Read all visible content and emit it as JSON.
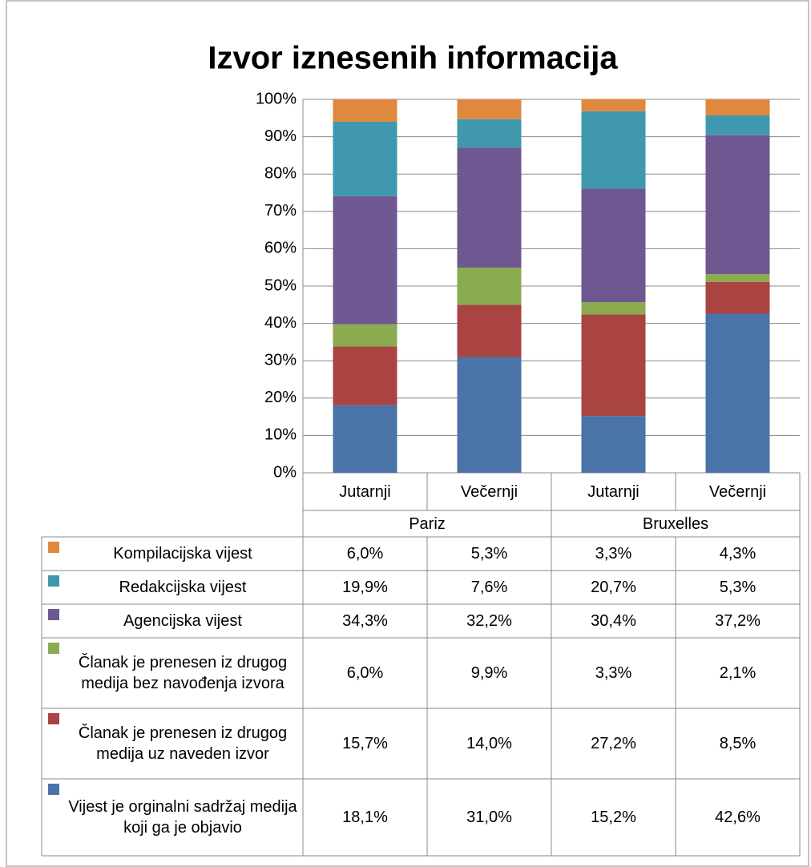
{
  "chart_data": {
    "type": "stacked_bar",
    "title": "Izvor iznesenih informacija",
    "categories": [
      "Jutarnji",
      "Večernji",
      "Jutarnji",
      "Večernji"
    ],
    "groups": [
      "Pariz",
      "Bruxelles"
    ],
    "ylim": [
      0,
      100
    ],
    "yticks": [
      {
        "value": 0,
        "label": "0%"
      },
      {
        "value": 10,
        "label": "10%"
      },
      {
        "value": 20,
        "label": "20%"
      },
      {
        "value": 30,
        "label": "30%"
      },
      {
        "value": 40,
        "label": "40%"
      },
      {
        "value": 50,
        "label": "50%"
      },
      {
        "value": 60,
        "label": "60%"
      },
      {
        "value": 70,
        "label": "70%"
      },
      {
        "value": 80,
        "label": "80%"
      },
      {
        "value": 90,
        "label": "90%"
      },
      {
        "value": 100,
        "label": "100%"
      }
    ],
    "grid": true,
    "series": [
      {
        "name": "Vijest je orginalni sadržaj medija koji ga je objavio",
        "color": "#4a73a8",
        "values": [
          18.1,
          31.0,
          15.2,
          42.6
        ],
        "value_labels": [
          "18,1%",
          "31,0%",
          "15,2%",
          "42,6%"
        ]
      },
      {
        "name": "Članak je prenesen iz drugog medija uz naveden izvor",
        "color": "#a94442",
        "values": [
          15.7,
          14.0,
          27.2,
          8.5
        ],
        "value_labels": [
          "15,7%",
          "14,0%",
          "27,2%",
          "8,5%"
        ]
      },
      {
        "name": "Članak je prenesen iz drugog medija bez navođenja izvora",
        "color": "#8aab4f",
        "values": [
          6.0,
          9.9,
          3.3,
          2.1
        ],
        "value_labels": [
          "6,0%",
          "9,9%",
          "3,3%",
          "2,1%"
        ]
      },
      {
        "name": "Agencijska vijest",
        "color": "#6f5891",
        "values": [
          34.3,
          32.2,
          30.4,
          37.2
        ],
        "value_labels": [
          "34,3%",
          "32,2%",
          "30,4%",
          "37,2%"
        ]
      },
      {
        "name": "Redakcijska vijest",
        "color": "#3f98ae",
        "values": [
          19.9,
          7.6,
          20.7,
          5.3
        ],
        "value_labels": [
          "19,9%",
          "7,6%",
          "20,7%",
          "5,3%"
        ]
      },
      {
        "name": "Kompilacijska vijest",
        "color": "#e0883e",
        "values": [
          6.0,
          5.3,
          3.3,
          4.3
        ],
        "value_labels": [
          "6,0%",
          "5,3%",
          "3,3%",
          "4,3%"
        ]
      }
    ]
  }
}
